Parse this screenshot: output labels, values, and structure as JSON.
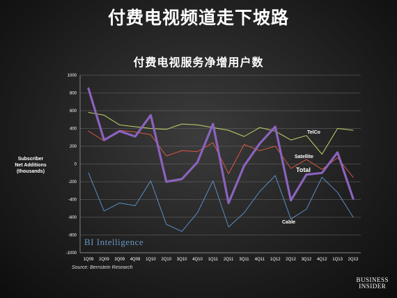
{
  "slide": {
    "title": "付费电视频道走下坡路",
    "watermark": "BI Intelligence",
    "brand_line1": "BUSINESS",
    "brand_line2": "INSIDER"
  },
  "chart_data": {
    "type": "line",
    "title": "付费电视服务净增用户数",
    "ylabel_lines": [
      "Subscriber",
      "Net Additions",
      "(thousands)"
    ],
    "source": "Source: Bernstein Research",
    "ylim": [
      -1000,
      1000
    ],
    "ytick_step": 200,
    "grid": true,
    "x": [
      "1Q09",
      "2Q09",
      "3Q09",
      "4Q09",
      "1Q10",
      "2Q10",
      "3Q10",
      "4Q10",
      "1Q11",
      "2Q11",
      "3Q11",
      "4Q11",
      "1Q12",
      "2Q12",
      "3Q12",
      "4Q12",
      "1Q13",
      "2Q13"
    ],
    "series": [
      {
        "name": "TelCo",
        "color": "#c7d36b",
        "width": 1,
        "values": [
          580,
          550,
          440,
          420,
          400,
          390,
          450,
          440,
          410,
          380,
          310,
          410,
          370,
          270,
          320,
          110,
          400,
          380
        ]
      },
      {
        "name": "Satellite",
        "color": "#d95643",
        "width": 1,
        "values": [
          370,
          260,
          380,
          360,
          330,
          90,
          150,
          140,
          240,
          -110,
          220,
          150,
          200,
          -50,
          50,
          -60,
          70,
          -150
        ]
      },
      {
        "name": "Total",
        "color": "#8a63be",
        "width": 3.2,
        "values": [
          850,
          270,
          370,
          310,
          550,
          -200,
          -170,
          20,
          450,
          -440,
          -20,
          230,
          420,
          -410,
          -120,
          -100,
          130,
          -390
        ]
      },
      {
        "name": "Cable",
        "color": "#5b8fc4",
        "width": 1,
        "values": [
          -100,
          -530,
          -440,
          -470,
          -190,
          -680,
          -760,
          -550,
          -190,
          -710,
          -550,
          -310,
          -130,
          -620,
          -510,
          -150,
          -320,
          -600
        ]
      }
    ]
  }
}
